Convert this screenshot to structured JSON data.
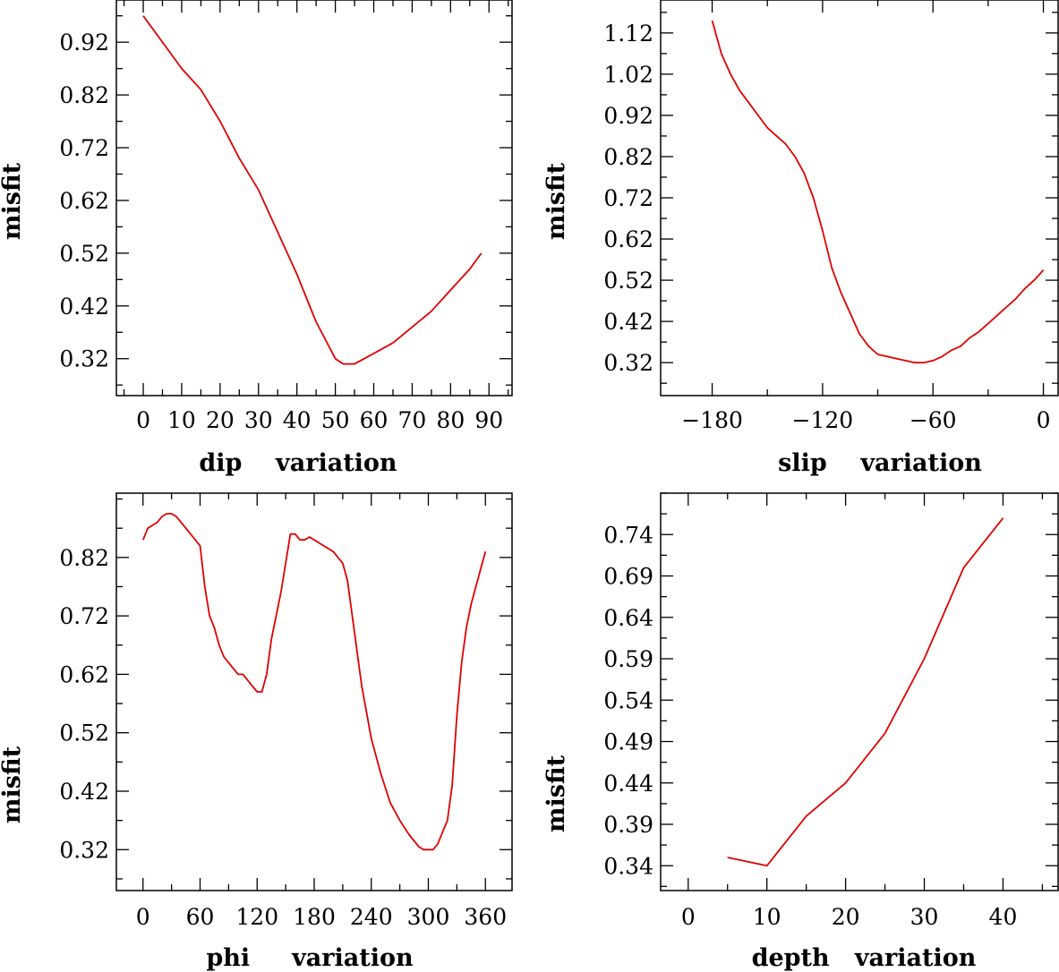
{
  "chart_data": [
    {
      "type": "line",
      "xlabel": "dip    variation",
      "ylabel": "misfit",
      "xlim": [
        -7,
        96
      ],
      "ylim": [
        0.25,
        1.0
      ],
      "xticks": [
        0,
        10,
        20,
        30,
        40,
        50,
        60,
        70,
        80,
        90
      ],
      "xtick_labels": [
        "0",
        "10",
        "20",
        "30",
        "40",
        "50",
        "60",
        "70",
        "80",
        "90"
      ],
      "yticks": [
        0.32,
        0.42,
        0.52,
        0.62,
        0.72,
        0.82,
        0.92
      ],
      "ytick_labels": [
        "0.32",
        "0.42",
        "0.52",
        "0.62",
        "0.72",
        "0.82",
        "0.92"
      ],
      "series": [
        {
          "name": "misfit",
          "color": "#e00000",
          "x": [
            0,
            5,
            10,
            15,
            20,
            25,
            30,
            35,
            40,
            45,
            50,
            52,
            55,
            60,
            65,
            70,
            75,
            80,
            85,
            88
          ],
          "y": [
            0.97,
            0.92,
            0.87,
            0.83,
            0.77,
            0.7,
            0.64,
            0.56,
            0.48,
            0.39,
            0.32,
            0.31,
            0.31,
            0.33,
            0.35,
            0.38,
            0.41,
            0.45,
            0.49,
            0.52
          ]
        }
      ]
    },
    {
      "type": "line",
      "xlabel": "slip    variation",
      "ylabel": "misfit",
      "xlim": [
        -208,
        8
      ],
      "ylim": [
        0.24,
        1.2
      ],
      "xticks": [
        -180,
        -120,
        -60,
        0
      ],
      "xtick_labels": [
        "−180",
        "−120",
        "−60",
        "0"
      ],
      "yticks": [
        0.32,
        0.42,
        0.52,
        0.62,
        0.72,
        0.82,
        0.92,
        1.02,
        1.12
      ],
      "ytick_labels": [
        "0.32",
        "0.42",
        "0.52",
        "0.62",
        "0.72",
        "0.82",
        "0.92",
        "1.02",
        "1.12"
      ],
      "series": [
        {
          "name": "misfit",
          "color": "#e00000",
          "x": [
            -180,
            -175,
            -170,
            -165,
            -160,
            -155,
            -150,
            -145,
            -140,
            -135,
            -130,
            -125,
            -120,
            -115,
            -110,
            -105,
            -100,
            -95,
            -90,
            -85,
            -80,
            -75,
            -70,
            -65,
            -60,
            -55,
            -50,
            -45,
            -40,
            -35,
            -30,
            -25,
            -20,
            -15,
            -10,
            -5,
            0
          ],
          "y": [
            1.15,
            1.07,
            1.02,
            0.98,
            0.95,
            0.92,
            0.89,
            0.87,
            0.85,
            0.82,
            0.78,
            0.72,
            0.64,
            0.55,
            0.49,
            0.44,
            0.39,
            0.36,
            0.34,
            0.335,
            0.33,
            0.325,
            0.32,
            0.32,
            0.325,
            0.335,
            0.35,
            0.36,
            0.38,
            0.395,
            0.415,
            0.435,
            0.455,
            0.475,
            0.5,
            0.52,
            0.545
          ]
        }
      ]
    },
    {
      "type": "line",
      "xlabel": "phi     variation",
      "ylabel": "misfit",
      "xlim": [
        -28,
        388
      ],
      "ylim": [
        0.25,
        0.93
      ],
      "xticks": [
        0,
        60,
        120,
        180,
        240,
        300,
        360
      ],
      "xtick_labels": [
        "0",
        "60",
        "120",
        "180",
        "240",
        "300",
        "360"
      ],
      "yticks": [
        0.32,
        0.42,
        0.52,
        0.62,
        0.72,
        0.82
      ],
      "ytick_labels": [
        "0.32",
        "0.42",
        "0.52",
        "0.62",
        "0.72",
        "0.82"
      ],
      "series": [
        {
          "name": "misfit",
          "color": "#e00000",
          "x": [
            0,
            5,
            10,
            15,
            20,
            25,
            30,
            35,
            40,
            45,
            50,
            55,
            60,
            65,
            70,
            75,
            80,
            85,
            90,
            95,
            100,
            105,
            110,
            115,
            120,
            125,
            130,
            135,
            140,
            145,
            150,
            155,
            160,
            165,
            170,
            175,
            180,
            185,
            190,
            195,
            200,
            205,
            210,
            215,
            220,
            230,
            240,
            250,
            260,
            270,
            280,
            290,
            295,
            300,
            305,
            310,
            315,
            320,
            325,
            330,
            335,
            340,
            345,
            350,
            355,
            360
          ],
          "y": [
            0.85,
            0.87,
            0.875,
            0.88,
            0.89,
            0.895,
            0.895,
            0.89,
            0.88,
            0.87,
            0.86,
            0.85,
            0.84,
            0.77,
            0.72,
            0.7,
            0.67,
            0.65,
            0.64,
            0.63,
            0.62,
            0.62,
            0.61,
            0.6,
            0.59,
            0.59,
            0.62,
            0.68,
            0.72,
            0.76,
            0.81,
            0.86,
            0.86,
            0.85,
            0.85,
            0.855,
            0.85,
            0.845,
            0.84,
            0.835,
            0.83,
            0.82,
            0.81,
            0.78,
            0.72,
            0.6,
            0.51,
            0.45,
            0.4,
            0.37,
            0.345,
            0.325,
            0.32,
            0.32,
            0.32,
            0.33,
            0.35,
            0.37,
            0.43,
            0.55,
            0.64,
            0.7,
            0.74,
            0.77,
            0.8,
            0.83
          ]
        }
      ]
    },
    {
      "type": "line",
      "xlabel": "depth   variation",
      "ylabel": "misfit",
      "xlim": [
        -3.5,
        47
      ],
      "ylim": [
        0.31,
        0.79
      ],
      "xticks": [
        0,
        10,
        20,
        30,
        40
      ],
      "xtick_labels": [
        "0",
        "10",
        "20",
        "30",
        "40"
      ],
      "yticks": [
        0.34,
        0.39,
        0.44,
        0.49,
        0.54,
        0.59,
        0.64,
        0.69,
        0.74
      ],
      "ytick_labels": [
        "0.34",
        "0.39",
        "0.44",
        "0.49",
        "0.54",
        "0.59",
        "0.64",
        "0.69",
        "0.74"
      ],
      "series": [
        {
          "name": "misfit",
          "color": "#e00000",
          "x": [
            5,
            10,
            15,
            20,
            25,
            30,
            35,
            40
          ],
          "y": [
            0.35,
            0.34,
            0.4,
            0.44,
            0.5,
            0.59,
            0.7,
            0.76
          ]
        }
      ]
    }
  ]
}
